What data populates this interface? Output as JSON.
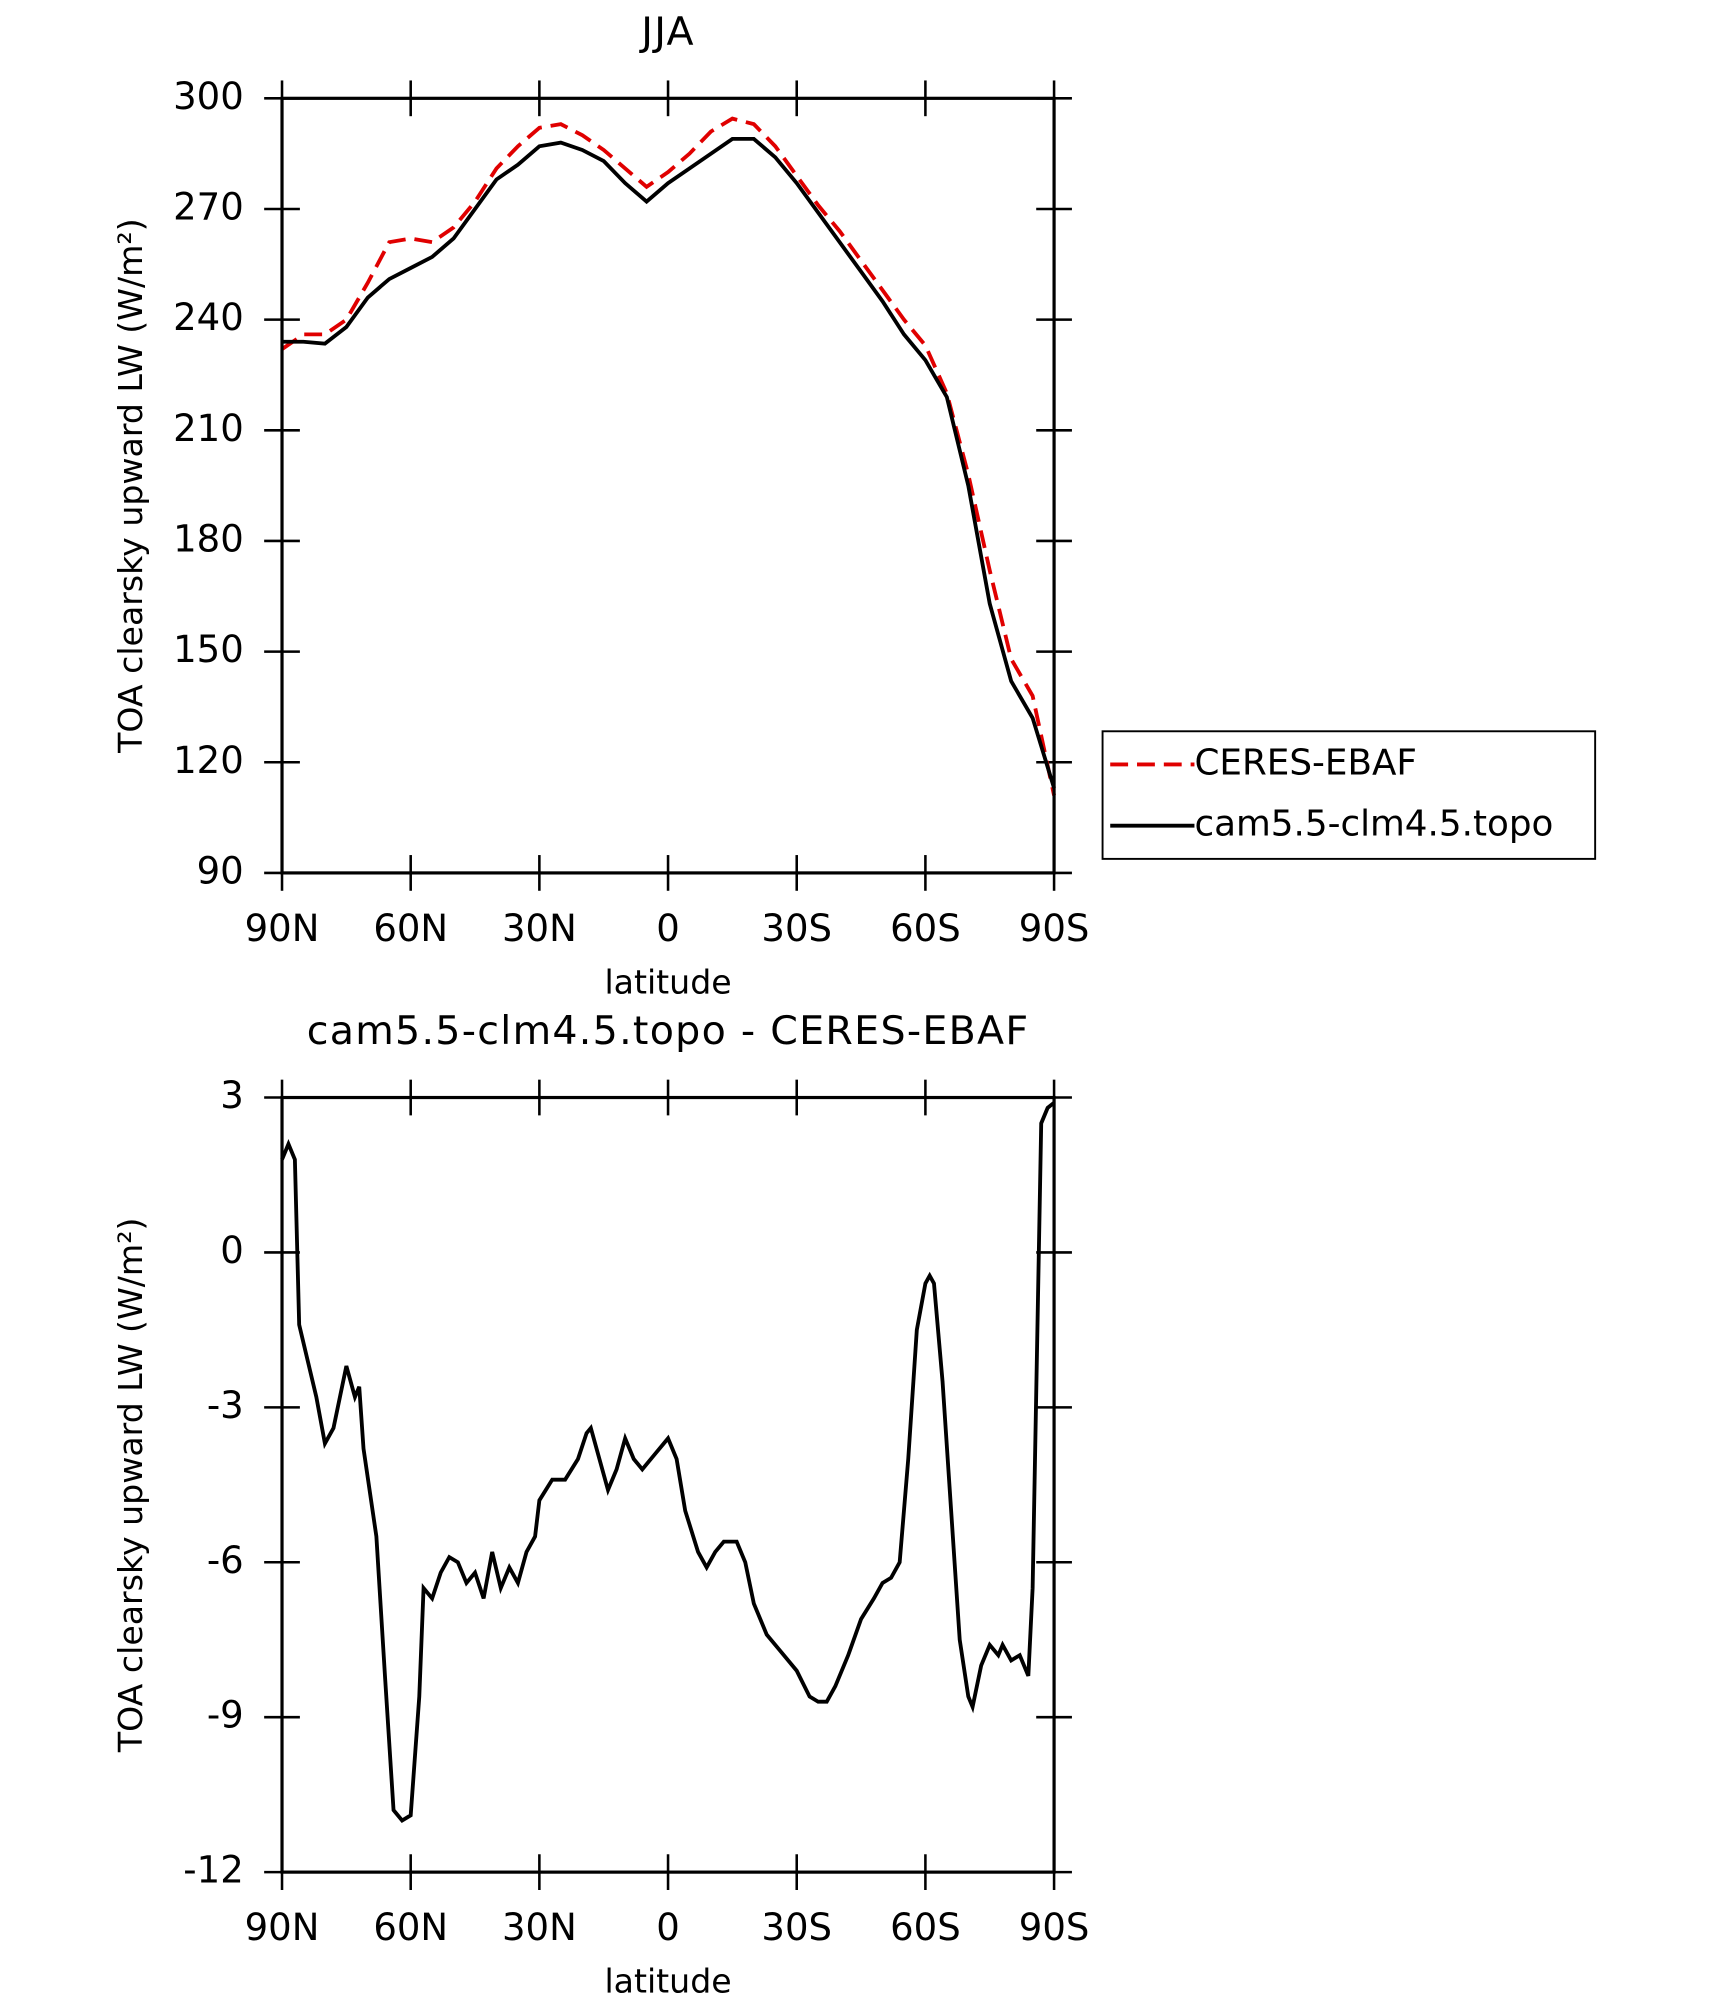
{
  "chart_data": [
    {
      "type": "line",
      "title": "JJA",
      "x_label": "latitude",
      "y_label": "TOA clearsky upward LW (W/m²)",
      "x": [
        90,
        85,
        80,
        75,
        70,
        65,
        60,
        55,
        50,
        45,
        40,
        35,
        30,
        25,
        20,
        15,
        10,
        5,
        0,
        -5,
        -10,
        -15,
        -20,
        -25,
        -30,
        -35,
        -40,
        -45,
        -50,
        -55,
        -60,
        -65,
        -70,
        -75,
        -80,
        -85,
        -90
      ],
      "series": [
        {
          "name": "CERES-EBAF",
          "color": "#e00000",
          "linestyle": "dashed",
          "values": [
            232,
            236,
            236,
            240,
            250,
            261,
            262,
            261,
            265,
            272,
            281,
            287,
            292,
            293,
            290,
            286,
            281,
            276,
            280,
            285,
            291,
            294.5,
            293,
            287,
            279,
            271,
            264,
            256,
            248,
            240,
            233,
            220,
            198,
            172,
            148,
            138,
            111
          ]
        },
        {
          "name": "cam5.5-clm4.5.topo",
          "color": "#000000",
          "linestyle": "solid",
          "values": [
            234,
            234,
            233.5,
            238,
            246,
            251,
            254,
            257,
            262,
            270,
            278,
            282,
            287,
            288,
            286,
            283,
            277,
            272,
            277,
            281,
            285,
            289,
            289,
            284,
            277,
            269,
            261,
            253,
            245,
            236,
            229,
            219,
            195,
            163,
            142,
            132,
            113
          ]
        }
      ],
      "xlim": [
        90,
        -90
      ],
      "xticks": [
        {
          "value": 90,
          "label": "90N"
        },
        {
          "value": 60,
          "label": "60N"
        },
        {
          "value": 30,
          "label": "30N"
        },
        0,
        {
          "value": -30,
          "label": "30S"
        },
        {
          "value": -60,
          "label": "60S"
        },
        {
          "value": -90,
          "label": "90S"
        }
      ],
      "ylim": [
        90,
        300
      ],
      "yticks": [
        90,
        120,
        150,
        180,
        210,
        240,
        270,
        300
      ],
      "legend": "right"
    },
    {
      "type": "line",
      "title": "cam5.5-clm4.5.topo - CERES-EBAF",
      "x_label": "latitude",
      "y_label": "TOA clearsky upward LW (W/m²)",
      "x": [
        90,
        88.5,
        87,
        86,
        84,
        82,
        80,
        78,
        75,
        73,
        72,
        71,
        68,
        66,
        64,
        62,
        60,
        58,
        57,
        55,
        53,
        51,
        49,
        47,
        45,
        43,
        41,
        39,
        37,
        35,
        33,
        31,
        30,
        27,
        24,
        21,
        19,
        18,
        16,
        14,
        12,
        10,
        8,
        6,
        3,
        0,
        -2,
        -4,
        -7,
        -9,
        -11,
        -13,
        -16,
        -18,
        -20,
        -23,
        -26,
        -30,
        -33,
        -35,
        -37,
        -39,
        -42,
        -45,
        -48,
        -50,
        -52,
        -54,
        -56,
        -58,
        -60,
        -61,
        -62,
        -64,
        -66,
        -68,
        -70,
        -71,
        -73,
        -75,
        -77,
        -78,
        -80,
        -82,
        -84,
        -85,
        -87,
        -88.5,
        -90
      ],
      "values": [
        1.8,
        2.1,
        1.8,
        -1.4,
        -2.1,
        -2.8,
        -3.7,
        -3.4,
        -2.2,
        -2.8,
        -2.6,
        -3.8,
        -5.5,
        -8.2,
        -10.8,
        -11.0,
        -10.9,
        -8.6,
        -6.5,
        -6.7,
        -6.2,
        -5.9,
        -6.0,
        -6.4,
        -6.2,
        -6.7,
        -5.8,
        -6.5,
        -6.1,
        -6.4,
        -5.8,
        -5.5,
        -4.8,
        -4.4,
        -4.4,
        -4.0,
        -3.5,
        -3.4,
        -4.0,
        -4.6,
        -4.2,
        -3.6,
        -4.0,
        -4.2,
        -3.9,
        -3.6,
        -4.0,
        -5.0,
        -5.8,
        -6.1,
        -5.8,
        -5.6,
        -5.6,
        -6.0,
        -6.8,
        -7.4,
        -7.7,
        -8.1,
        -8.6,
        -8.7,
        -8.7,
        -8.4,
        -7.8,
        -7.1,
        -6.7,
        -6.4,
        -6.3,
        -6.0,
        -4.0,
        -1.5,
        -0.6,
        -0.45,
        -0.6,
        -2.5,
        -5.0,
        -7.5,
        -8.6,
        -8.8,
        -8.0,
        -7.6,
        -7.8,
        -7.6,
        -7.9,
        -7.8,
        -8.2,
        -6.5,
        2.5,
        2.8,
        2.9
      ],
      "color": "#000000",
      "xlim": [
        90,
        -90
      ],
      "xticks": [
        {
          "value": 90,
          "label": "90N"
        },
        {
          "value": 60,
          "label": "60N"
        },
        {
          "value": 30,
          "label": "30N"
        },
        0,
        {
          "value": -30,
          "label": "30S"
        },
        {
          "value": -60,
          "label": "60S"
        },
        {
          "value": -90,
          "label": "90S"
        }
      ],
      "ylim": [
        -12,
        3
      ],
      "yticks": [
        -12,
        -9,
        -6,
        -3,
        0,
        3
      ]
    }
  ]
}
